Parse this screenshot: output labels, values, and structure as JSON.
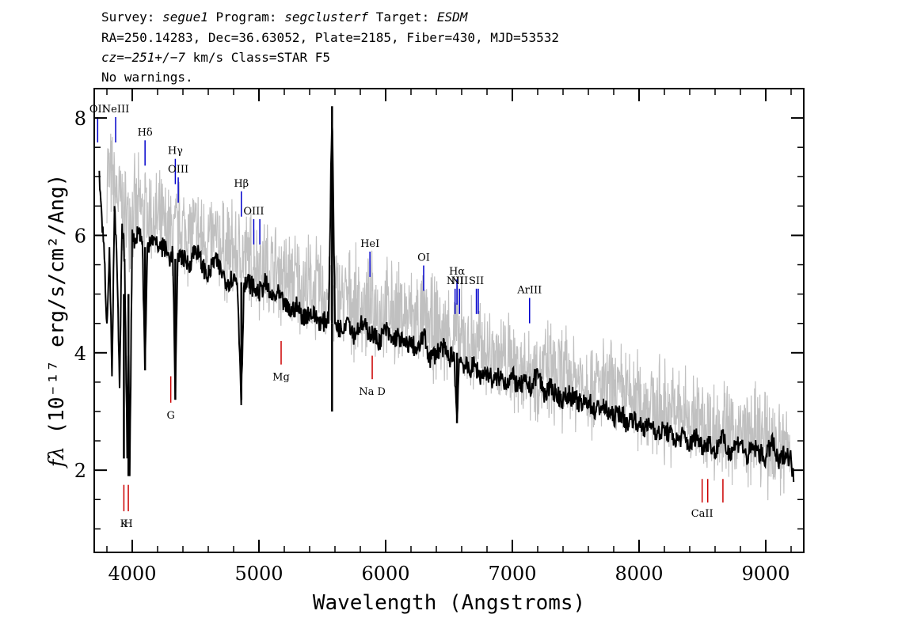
{
  "header": {
    "line1": {
      "survey_label": "Survey: ",
      "survey": "segue1",
      "program_label": " Program: ",
      "program": "segclusterf",
      "target_label": " Target: ",
      "target": "ESDM"
    },
    "line2": "RA=250.14283, Dec=36.63052, Plate=2185, Fiber=430, MJD=53532",
    "line3": {
      "cz": "cz=−251+/−7",
      "rest": " km/s Class=STAR F5"
    },
    "line4": "No warnings."
  },
  "chart_data": {
    "type": "line",
    "title": "",
    "xlabel": "Wavelength (Angstroms)",
    "ylabel": "fλ (10⁻¹⁷ erg/s/cm²/Ang)",
    "xlim": [
      3700,
      9300
    ],
    "ylim": [
      0.6,
      8.5
    ],
    "x_ticks": [
      4000,
      5000,
      6000,
      7000,
      8000,
      9000
    ],
    "y_ticks": [
      2,
      4,
      6,
      8
    ],
    "grid": false,
    "series": [
      {
        "role": "error",
        "color": "#c0c0c0",
        "x": [
          3800,
          3850,
          3900,
          3950,
          4000,
          4100,
          4200,
          4300,
          4400,
          4500,
          4600,
          4700,
          4800,
          4900,
          5000,
          5200,
          5400,
          5600,
          5800,
          6000,
          6200,
          6400,
          6600,
          6800,
          7000,
          7200,
          7400,
          7600,
          7800,
          8000,
          8200,
          8400,
          8600,
          8800,
          9000,
          9200
        ],
        "values": [
          7.2,
          6.8,
          6.6,
          6.3,
          6.4,
          6.4,
          6.2,
          6.0,
          6.1,
          6.0,
          5.9,
          5.8,
          5.7,
          5.6,
          5.5,
          5.3,
          5.1,
          5.0,
          4.8,
          4.7,
          4.6,
          4.4,
          4.2,
          4.0,
          3.8,
          3.7,
          3.6,
          3.5,
          3.3,
          3.2,
          3.0,
          2.9,
          2.7,
          2.6,
          2.5,
          2.3
        ]
      },
      {
        "role": "flux",
        "color": "#000000",
        "x": [
          3740,
          3760,
          3780,
          3800,
          3820,
          3840,
          3860,
          3880,
          3900,
          3920,
          3940,
          3960,
          3970,
          3980,
          4000,
          4020,
          4050,
          4080,
          4101,
          4120,
          4150,
          4200,
          4250,
          4300,
          4320,
          4340,
          4360,
          4400,
          4450,
          4500,
          4550,
          4600,
          4650,
          4700,
          4750,
          4800,
          4830,
          4861,
          4880,
          4920,
          4960,
          5000,
          5050,
          5100,
          5150,
          5200,
          5250,
          5300,
          5350,
          5400,
          5450,
          5500,
          5550,
          5577,
          5600,
          5650,
          5700,
          5750,
          5800,
          5850,
          5900,
          5950,
          6000,
          6050,
          6100,
          6150,
          6200,
          6250,
          6300,
          6350,
          6400,
          6450,
          6500,
          6540,
          6563,
          6580,
          6620,
          6660,
          6700,
          6750,
          6800,
          6850,
          6900,
          6950,
          7000,
          7050,
          7100,
          7150,
          7200,
          7250,
          7300,
          7350,
          7400,
          7450,
          7500,
          7550,
          7600,
          7650,
          7700,
          7750,
          7800,
          7850,
          7900,
          7950,
          8000,
          8050,
          8100,
          8150,
          8200,
          8250,
          8300,
          8350,
          8400,
          8450,
          8500,
          8550,
          8600,
          8650,
          8700,
          8750,
          8800,
          8850,
          8900,
          8950,
          9000,
          9050,
          9100,
          9150,
          9200,
          9220
        ],
        "values": [
          7.1,
          6.3,
          5.6,
          4.5,
          5.8,
          3.6,
          6.5,
          5.4,
          3.4,
          6.2,
          5.6,
          2.2,
          4.5,
          1.9,
          6.1,
          5.9,
          6.1,
          5.9,
          3.7,
          5.8,
          6.0,
          5.8,
          5.8,
          5.6,
          5.7,
          3.2,
          5.7,
          5.6,
          5.5,
          5.8,
          5.5,
          5.3,
          5.6,
          5.4,
          5.2,
          5.3,
          5.2,
          3.2,
          5.1,
          5.2,
          5.1,
          5.0,
          5.2,
          4.9,
          5.0,
          4.8,
          4.7,
          4.8,
          4.6,
          4.7,
          4.6,
          4.5,
          4.6,
          8.2,
          4.5,
          4.4,
          4.6,
          4.3,
          4.5,
          4.4,
          4.3,
          4.2,
          4.4,
          4.2,
          4.3,
          4.1,
          4.2,
          4.0,
          4.3,
          3.9,
          4.0,
          4.1,
          3.9,
          4.0,
          2.8,
          3.9,
          3.8,
          3.7,
          3.8,
          3.6,
          3.7,
          3.5,
          3.6,
          3.5,
          3.6,
          3.4,
          3.5,
          3.4,
          3.7,
          3.3,
          3.4,
          3.3,
          3.2,
          3.3,
          3.2,
          3.1,
          3.2,
          3.0,
          3.1,
          3.0,
          2.9,
          3.0,
          2.8,
          2.9,
          2.8,
          2.7,
          2.8,
          2.6,
          2.7,
          2.6,
          2.5,
          2.6,
          2.4,
          2.6,
          2.4,
          2.5,
          2.3,
          2.6,
          2.3,
          2.4,
          2.5,
          2.2,
          2.4,
          2.3,
          2.2,
          2.5,
          2.1,
          2.3,
          2.2,
          1.8
        ]
      }
    ],
    "emission_lines": [
      {
        "label": "OII",
        "wave": 3727,
        "frac": 0.0,
        "color": "#0000cc"
      },
      {
        "label": "NeIII",
        "wave": 3869,
        "frac": 0.0,
        "color": "#0000cc"
      },
      {
        "label": "Hδ",
        "wave": 4101,
        "frac": 0.05,
        "color": "#0000cc"
      },
      {
        "label": "Hγ",
        "wave": 4340,
        "frac": 0.09,
        "color": "#0000cc"
      },
      {
        "label": "OIII",
        "wave": 4363,
        "frac": 0.13,
        "color": "#0000cc"
      },
      {
        "label": "Hβ",
        "wave": 4861,
        "frac": 0.16,
        "color": "#0000cc"
      },
      {
        "label": "OIII",
        "wave": 4959,
        "frac": 0.22,
        "color": "#0000cc"
      },
      {
        "label": "",
        "wave": 5007,
        "frac": 0.22,
        "color": "#0000cc"
      },
      {
        "label": "HeI",
        "wave": 5876,
        "frac": 0.29,
        "color": "#0000cc"
      },
      {
        "label": "OI",
        "wave": 6300,
        "frac": 0.32,
        "color": "#0000cc"
      },
      {
        "label": "NII",
        "wave": 6548,
        "frac": 0.37,
        "color": "#0000cc"
      },
      {
        "label": "Hα",
        "wave": 6563,
        "frac": 0.35,
        "color": "#0000cc"
      },
      {
        "label": "NII",
        "wave": 6583,
        "frac": 0.37,
        "color": "#0000cc"
      },
      {
        "label": "SII",
        "wave": 6716,
        "frac": 0.37,
        "color": "#0000cc"
      },
      {
        "label": "",
        "wave": 6731,
        "frac": 0.37,
        "color": "#0000cc"
      },
      {
        "label": "ArIII",
        "wave": 7136,
        "frac": 0.39,
        "color": "#0000cc"
      }
    ],
    "absorption_lines": [
      {
        "label": "K",
        "wave": 3934,
        "color": "#cc0000"
      },
      {
        "label": "H",
        "wave": 3969,
        "color": "#cc0000"
      },
      {
        "label": "G",
        "wave": 4304,
        "color": "#cc0000"
      },
      {
        "label": "Mg",
        "wave": 5175,
        "color": "#cc0000"
      },
      {
        "label": "Na D",
        "wave": 5894,
        "color": "#cc0000"
      },
      {
        "label": "CaII",
        "wave": 8498,
        "color": "#cc0000"
      },
      {
        "label": "",
        "wave": 8542,
        "color": "#cc0000"
      },
      {
        "label": "",
        "wave": 8662,
        "color": "#cc0000"
      }
    ]
  }
}
